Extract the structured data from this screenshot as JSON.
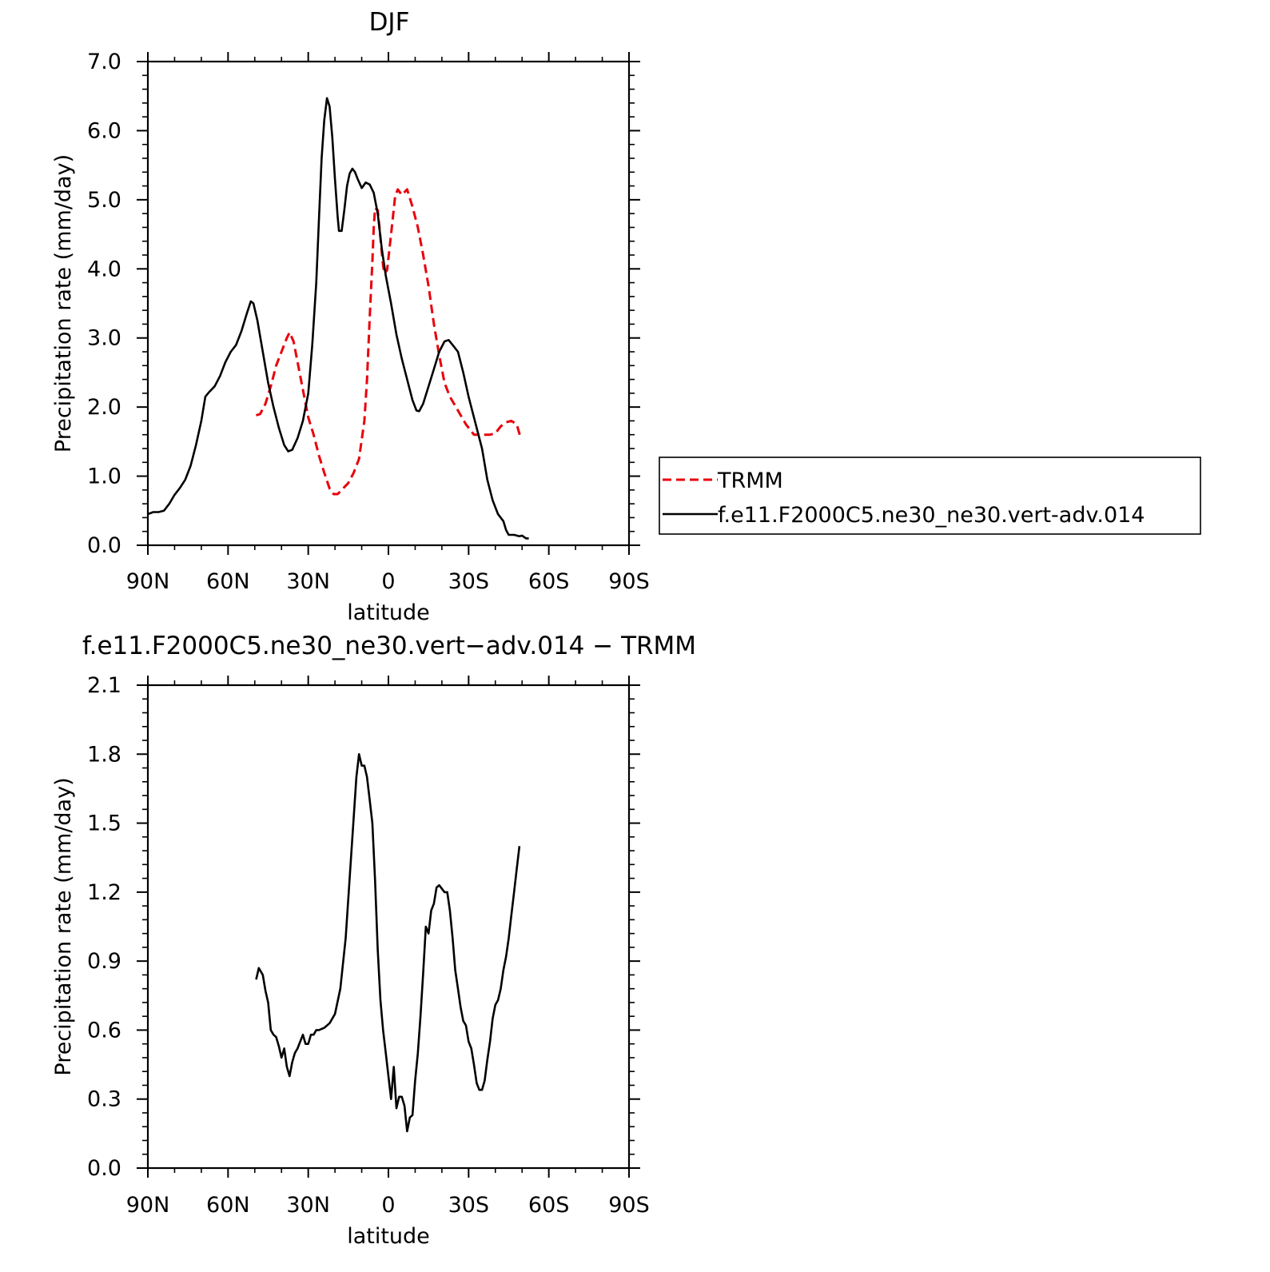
{
  "chart_data": [
    {
      "type": "line",
      "title": "DJF",
      "xlabel": "latitude",
      "ylabel": "Precipitation rate (mm/day)",
      "xlim": [
        90,
        -90
      ],
      "ylim": [
        0,
        7
      ],
      "x_ticks": [
        {
          "value": 90,
          "label": "90N"
        },
        {
          "value": 60,
          "label": "60N"
        },
        {
          "value": 30,
          "label": "30N"
        },
        {
          "value": 0,
          "label": "0"
        },
        {
          "value": -30,
          "label": "30S"
        },
        {
          "value": -60,
          "label": "60S"
        },
        {
          "value": -90,
          "label": "90S"
        }
      ],
      "y_ticks": [
        {
          "value": 0,
          "label": "0.0"
        },
        {
          "value": 1,
          "label": "1.0"
        },
        {
          "value": 2,
          "label": "2.0"
        },
        {
          "value": 3,
          "label": "3.0"
        },
        {
          "value": 4,
          "label": "4.0"
        },
        {
          "value": 5,
          "label": "5.0"
        },
        {
          "value": 6,
          "label": "6.0"
        },
        {
          "value": 7,
          "label": "7.0"
        }
      ],
      "legend": {
        "placement": "right"
      },
      "series": [
        {
          "name": "TRMM",
          "color": "#e8000b",
          "dash": true,
          "points": [
            [
              49.5,
              1.88
            ],
            [
              48,
              1.9
            ],
            [
              46,
              2.05
            ],
            [
              44,
              2.3
            ],
            [
              42,
              2.6
            ],
            [
              40,
              2.8
            ],
            [
              38,
              3.0
            ],
            [
              37,
              3.08
            ],
            [
              35.5,
              2.95
            ],
            [
              34,
              2.65
            ],
            [
              32,
              2.25
            ],
            [
              30,
              1.85
            ],
            [
              28,
              1.6
            ],
            [
              26,
              1.3
            ],
            [
              24,
              1.05
            ],
            [
              22,
              0.82
            ],
            [
              20.5,
              0.74
            ],
            [
              19,
              0.74
            ],
            [
              17,
              0.82
            ],
            [
              15,
              0.9
            ],
            [
              13,
              1.05
            ],
            [
              11,
              1.25
            ],
            [
              9,
              1.8
            ],
            [
              8,
              2.4
            ],
            [
              7,
              3.3
            ],
            [
              6,
              4.1
            ],
            [
              5.5,
              4.6
            ],
            [
              5,
              4.88
            ],
            [
              4,
              4.85
            ],
            [
              3,
              4.45
            ],
            [
              2,
              4.05
            ],
            [
              1.5,
              3.93
            ],
            [
              0.5,
              3.98
            ],
            [
              -1,
              4.5
            ],
            [
              -2.5,
              5.05
            ],
            [
              -3.5,
              5.15
            ],
            [
              -5,
              5.07
            ],
            [
              -7,
              5.15
            ],
            [
              -9,
              4.9
            ],
            [
              -11,
              4.6
            ],
            [
              -13,
              4.2
            ],
            [
              -15,
              3.75
            ],
            [
              -17,
              3.2
            ],
            [
              -19,
              2.75
            ],
            [
              -21,
              2.35
            ],
            [
              -23,
              2.15
            ],
            [
              -26,
              1.95
            ],
            [
              -29,
              1.75
            ],
            [
              -32,
              1.6
            ],
            [
              -35,
              1.6
            ],
            [
              -38,
              1.6
            ],
            [
              -40,
              1.62
            ],
            [
              -42,
              1.72
            ],
            [
              -44,
              1.78
            ],
            [
              -46,
              1.8
            ],
            [
              -48,
              1.75
            ],
            [
              -49.5,
              1.55
            ]
          ]
        },
        {
          "name": "f.e11.F2000C5.ne30_ne30.vert-adv.014",
          "color": "#000000",
          "dash": false,
          "points": [
            [
              90,
              0.45
            ],
            [
              88,
              0.48
            ],
            [
              86,
              0.48
            ],
            [
              84,
              0.5
            ],
            [
              82,
              0.6
            ],
            [
              80,
              0.73
            ],
            [
              78,
              0.83
            ],
            [
              76,
              0.95
            ],
            [
              74,
              1.15
            ],
            [
              72,
              1.45
            ],
            [
              70,
              1.8
            ],
            [
              68.5,
              2.15
            ],
            [
              67,
              2.22
            ],
            [
              65,
              2.3
            ],
            [
              63,
              2.45
            ],
            [
              61,
              2.65
            ],
            [
              59,
              2.8
            ],
            [
              57,
              2.9
            ],
            [
              55,
              3.1
            ],
            [
              53,
              3.35
            ],
            [
              51.5,
              3.53
            ],
            [
              50.5,
              3.5
            ],
            [
              49,
              3.25
            ],
            [
              47,
              2.8
            ],
            [
              45,
              2.35
            ],
            [
              43,
              2.0
            ],
            [
              41,
              1.7
            ],
            [
              39,
              1.45
            ],
            [
              37.5,
              1.36
            ],
            [
              36,
              1.38
            ],
            [
              34,
              1.55
            ],
            [
              32,
              1.8
            ],
            [
              30,
              2.2
            ],
            [
              28.5,
              2.9
            ],
            [
              27,
              3.8
            ],
            [
              26,
              4.7
            ],
            [
              25,
              5.6
            ],
            [
              24,
              6.15
            ],
            [
              23,
              6.47
            ],
            [
              22,
              6.35
            ],
            [
              21,
              5.9
            ],
            [
              20,
              5.3
            ],
            [
              19,
              4.75
            ],
            [
              18.5,
              4.55
            ],
            [
              17.5,
              4.55
            ],
            [
              16.5,
              4.85
            ],
            [
              15.5,
              5.2
            ],
            [
              14.5,
              5.38
            ],
            [
              13.5,
              5.45
            ],
            [
              12.5,
              5.4
            ],
            [
              11.5,
              5.3
            ],
            [
              10,
              5.17
            ],
            [
              8.5,
              5.25
            ],
            [
              7,
              5.22
            ],
            [
              5.5,
              5.1
            ],
            [
              4,
              4.8
            ],
            [
              2.5,
              4.3
            ],
            [
              1,
              3.9
            ],
            [
              -1,
              3.5
            ],
            [
              -3,
              3.05
            ],
            [
              -5,
              2.7
            ],
            [
              -7,
              2.4
            ],
            [
              -9,
              2.1
            ],
            [
              -10.5,
              1.95
            ],
            [
              -11.5,
              1.94
            ],
            [
              -13,
              2.05
            ],
            [
              -15,
              2.3
            ],
            [
              -17,
              2.55
            ],
            [
              -19,
              2.8
            ],
            [
              -21,
              2.95
            ],
            [
              -22.5,
              2.97
            ],
            [
              -24,
              2.9
            ],
            [
              -26,
              2.8
            ],
            [
              -28,
              2.5
            ],
            [
              -30,
              2.15
            ],
            [
              -32,
              1.85
            ],
            [
              -35,
              1.4
            ],
            [
              -37,
              0.95
            ],
            [
              -39,
              0.65
            ],
            [
              -41,
              0.45
            ],
            [
              -43,
              0.35
            ],
            [
              -44,
              0.22
            ],
            [
              -45,
              0.15
            ],
            [
              -47,
              0.15
            ],
            [
              -49,
              0.13
            ],
            [
              -50,
              0.14
            ],
            [
              -51.5,
              0.1
            ],
            [
              -52.5,
              0.1
            ]
          ]
        }
      ]
    },
    {
      "type": "line",
      "title": "f.e11.F2000C5.ne30_ne30.vert−adv.014 − TRMM",
      "xlabel": "latitude",
      "ylabel": "Precipitation rate (mm/day)",
      "xlim": [
        90,
        -90
      ],
      "ylim": [
        0,
        2.1
      ],
      "x_ticks": [
        {
          "value": 90,
          "label": "90N"
        },
        {
          "value": 60,
          "label": "60N"
        },
        {
          "value": 30,
          "label": "30N"
        },
        {
          "value": 0,
          "label": "0"
        },
        {
          "value": -30,
          "label": "30S"
        },
        {
          "value": -60,
          "label": "60S"
        },
        {
          "value": -90,
          "label": "90S"
        }
      ],
      "y_ticks": [
        {
          "value": 0,
          "label": "0.0"
        },
        {
          "value": 0.3,
          "label": "0.3"
        },
        {
          "value": 0.6,
          "label": "0.6"
        },
        {
          "value": 0.9,
          "label": "0.9"
        },
        {
          "value": 1.2,
          "label": "1.2"
        },
        {
          "value": 1.5,
          "label": "1.5"
        },
        {
          "value": 1.8,
          "label": "1.8"
        },
        {
          "value": 2.1,
          "label": "2.1"
        }
      ],
      "series": [
        {
          "color": "#000000",
          "dash": false,
          "points": [
            [
              49.5,
              0.82
            ],
            [
              48.5,
              0.87
            ],
            [
              47,
              0.84
            ],
            [
              46,
              0.77
            ],
            [
              45,
              0.72
            ],
            [
              44,
              0.6
            ],
            [
              43,
              0.58
            ],
            [
              42,
              0.57
            ],
            [
              41,
              0.53
            ],
            [
              40,
              0.48
            ],
            [
              39,
              0.52
            ],
            [
              38,
              0.44
            ],
            [
              37,
              0.4
            ],
            [
              36,
              0.46
            ],
            [
              35,
              0.5
            ],
            [
              34,
              0.52
            ],
            [
              33,
              0.55
            ],
            [
              32,
              0.58
            ],
            [
              31,
              0.54
            ],
            [
              30,
              0.54
            ],
            [
              29,
              0.58
            ],
            [
              28,
              0.58
            ],
            [
              27,
              0.6
            ],
            [
              26,
              0.6
            ],
            [
              24,
              0.61
            ],
            [
              22,
              0.63
            ],
            [
              20,
              0.67
            ],
            [
              18,
              0.78
            ],
            [
              16,
              1.0
            ],
            [
              14,
              1.35
            ],
            [
              12,
              1.7
            ],
            [
              11,
              1.8
            ],
            [
              10,
              1.75
            ],
            [
              9,
              1.75
            ],
            [
              8,
              1.7
            ],
            [
              7,
              1.6
            ],
            [
              6,
              1.5
            ],
            [
              5,
              1.25
            ],
            [
              4,
              0.95
            ],
            [
              3,
              0.73
            ],
            [
              2,
              0.6
            ],
            [
              1,
              0.5
            ],
            [
              0,
              0.4
            ],
            [
              -1,
              0.3
            ],
            [
              -2,
              0.44
            ],
            [
              -3,
              0.26
            ],
            [
              -4,
              0.31
            ],
            [
              -5,
              0.31
            ],
            [
              -6,
              0.27
            ],
            [
              -7,
              0.16
            ],
            [
              -8,
              0.22
            ],
            [
              -9,
              0.23
            ],
            [
              -10,
              0.38
            ],
            [
              -11,
              0.5
            ],
            [
              -12,
              0.66
            ],
            [
              -13,
              0.85
            ],
            [
              -14,
              1.05
            ],
            [
              -15,
              1.02
            ],
            [
              -16,
              1.12
            ],
            [
              -17,
              1.15
            ],
            [
              -18,
              1.22
            ],
            [
              -19,
              1.23
            ],
            [
              -21,
              1.2
            ],
            [
              -22,
              1.2
            ],
            [
              -23,
              1.12
            ],
            [
              -24,
              1.0
            ],
            [
              -25,
              0.86
            ],
            [
              -26,
              0.78
            ],
            [
              -27,
              0.7
            ],
            [
              -28,
              0.64
            ],
            [
              -29,
              0.62
            ],
            [
              -30,
              0.55
            ],
            [
              -31,
              0.52
            ],
            [
              -32,
              0.45
            ],
            [
              -33,
              0.37
            ],
            [
              -34,
              0.34
            ],
            [
              -35,
              0.34
            ],
            [
              -36,
              0.38
            ],
            [
              -37,
              0.47
            ],
            [
              -38,
              0.55
            ],
            [
              -39,
              0.65
            ],
            [
              -40,
              0.71
            ],
            [
              -41,
              0.73
            ],
            [
              -42,
              0.78
            ],
            [
              -43,
              0.86
            ],
            [
              -44,
              0.92
            ],
            [
              -45,
              1.0
            ],
            [
              -46,
              1.1
            ],
            [
              -47,
              1.2
            ],
            [
              -48,
              1.3
            ],
            [
              -49,
              1.4
            ]
          ]
        }
      ]
    }
  ]
}
